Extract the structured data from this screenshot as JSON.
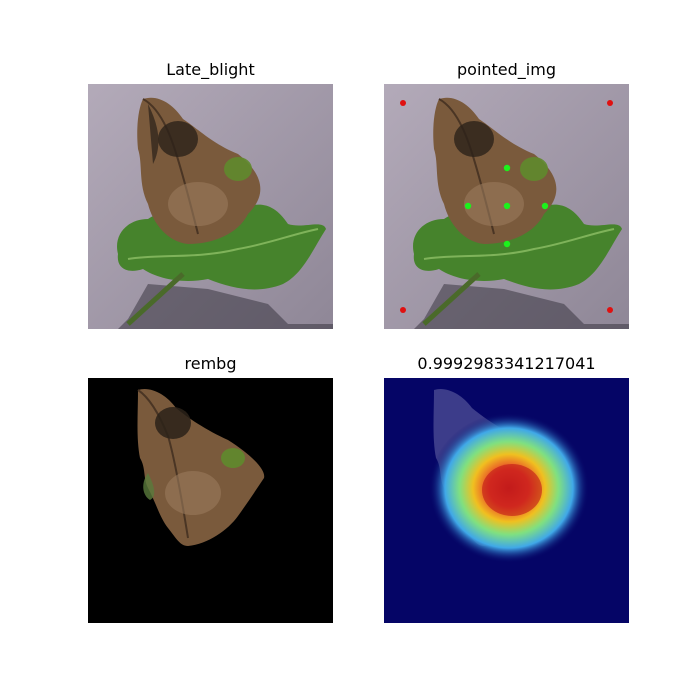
{
  "panels": [
    {
      "title": "Late_blight",
      "kind": "original-photo"
    },
    {
      "title": "pointed_img",
      "kind": "photo-with-prompt-points",
      "point_colors": {
        "foreground": "#1cf21c",
        "background": "#e01010"
      }
    },
    {
      "title": "rembg",
      "kind": "background-removed"
    },
    {
      "title": "0.9992983341217041",
      "kind": "heatmap-overlay"
    }
  ],
  "colors": {
    "background_surface": "#9e95a6",
    "leaf_green": "#3f7a2a",
    "blight_brown": "#7a5a3c",
    "heatmap_base": "#050566"
  }
}
